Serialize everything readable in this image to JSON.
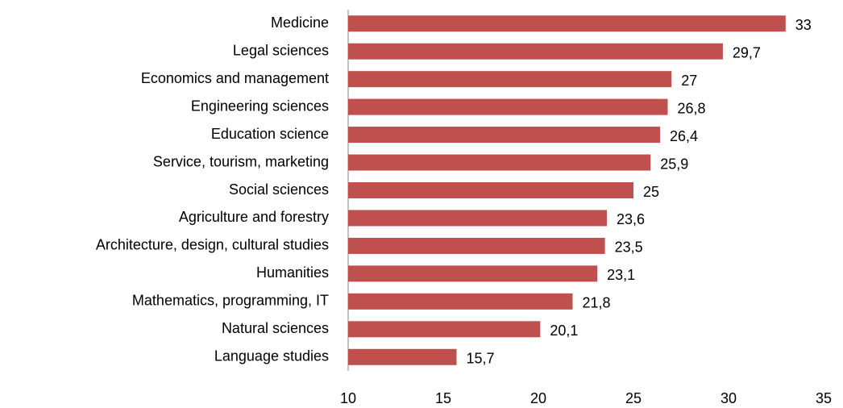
{
  "chart_data": {
    "type": "bar",
    "orientation": "horizontal",
    "categories": [
      "Medicine",
      "Legal sciences",
      "Economics and management",
      "Engineering sciences",
      "Education science",
      "Service, tourism, marketing",
      "Social sciences",
      "Agriculture and forestry",
      "Architecture, design, cultural studies",
      "Humanities",
      "Mathematics, programming, IT",
      "Natural sciences",
      "Language studies"
    ],
    "values": [
      33,
      29.7,
      27,
      26.8,
      26.4,
      25.9,
      25,
      23.6,
      23.5,
      23.1,
      21.8,
      20.1,
      15.7
    ],
    "value_labels": [
      "33",
      "29,7",
      "27",
      "26,8",
      "26,4",
      "25,9",
      "25",
      "23,6",
      "23,5",
      "23,1",
      "21,8",
      "20,1",
      "15,7"
    ],
    "color": "#c0504d",
    "xlim": [
      10,
      35
    ],
    "xticks": [
      10,
      15,
      20,
      25,
      30,
      35
    ],
    "grid": false
  }
}
